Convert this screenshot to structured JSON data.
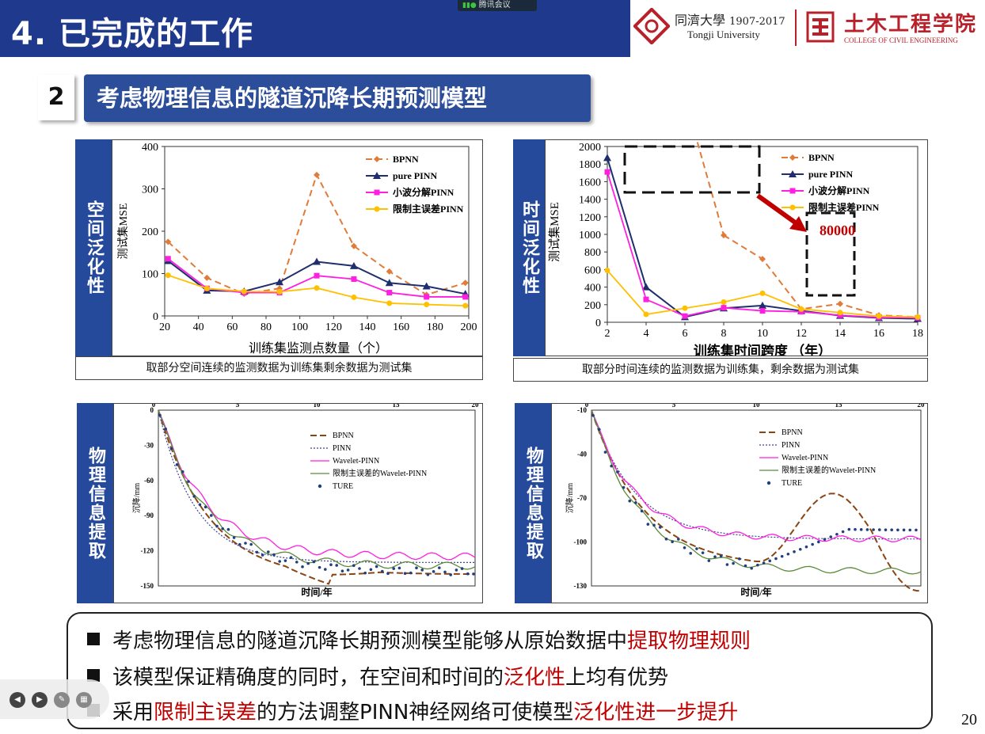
{
  "header": {
    "title": "4. 已完成的工作",
    "meeting": "腾讯会议",
    "tongji_cn": "同濟大學",
    "tongji_years": "1907-2017",
    "tongji_en": "Tongji University",
    "college_cn": "土木工程学院",
    "college_en": "COLLEGE OF CIVIL ENGINEERING"
  },
  "section": {
    "number": "2",
    "title": "考虑物理信息的隧道沉降长期预测模型"
  },
  "panels": {
    "spatial_label": "空间泛化性",
    "temporal_label": "时间泛化性",
    "phys_label_1": "物理信息提取",
    "phys_label_2": "物理信息提取",
    "spatial_caption": "取部分空间连续的监测数据为训练集剩余数据为测试集",
    "temporal_caption": "取部分时间连续的监测数据为训练集，剩余数据为测试集"
  },
  "colors": {
    "bpnn": "#e07b39",
    "pinn": "#1f2f6e",
    "wavelet": "#ff1fe0",
    "limit": "#ffc000",
    "true": "#1f3f7f",
    "limit2": "#5a8a3a"
  },
  "chart_data": [
    {
      "type": "line",
      "id": "spatial",
      "xlabel": "训练集监测点数量（个）",
      "ylabel": "测试集MSE",
      "xlim": [
        20,
        200
      ],
      "ylim": [
        0,
        400
      ],
      "xticks": [
        20,
        40,
        60,
        80,
        100,
        120,
        140,
        160,
        180,
        200
      ],
      "yticks": [
        0,
        100,
        200,
        300,
        400
      ],
      "x": [
        22,
        45,
        67,
        88,
        110,
        132,
        153,
        175,
        198
      ],
      "series": [
        {
          "name": "BPNN",
          "values": [
            175,
            90,
            52,
            65,
            333,
            165,
            105,
            50,
            78
          ]
        },
        {
          "name": "pure PINN",
          "values": [
            130,
            60,
            58,
            80,
            128,
            118,
            78,
            70,
            52
          ]
        },
        {
          "name": "小波分解PINN",
          "values": [
            135,
            65,
            55,
            55,
            95,
            87,
            55,
            45,
            45
          ]
        },
        {
          "name": "限制主误差PINN",
          "values": [
            96,
            65,
            58,
            57,
            66,
            44,
            30,
            27,
            24
          ]
        }
      ]
    },
    {
      "type": "line",
      "id": "temporal",
      "xlabel": "训练集时间跨度 （年）",
      "ylabel": "测试集MSE",
      "xlim": [
        2,
        18
      ],
      "ylim": [
        0,
        2000
      ],
      "xticks": [
        2,
        4,
        6,
        8,
        10,
        12,
        14,
        16,
        18
      ],
      "yticks": [
        0,
        200,
        400,
        600,
        800,
        1000,
        1200,
        1400,
        1600,
        1800,
        2000
      ],
      "annotation": "80000",
      "x": [
        2,
        4,
        6,
        8,
        10,
        12,
        14,
        16,
        18
      ],
      "series": [
        {
          "name": "BPNN",
          "values": [
            null,
            null,
            null,
            990,
            720,
            150,
            210,
            80,
            60
          ]
        },
        {
          "name": "pure PINN",
          "values": [
            1870,
            400,
            60,
            160,
            190,
            130,
            75,
            50,
            40
          ]
        },
        {
          "name": "小波分解PINN",
          "values": [
            1710,
            260,
            70,
            165,
            130,
            120,
            80,
            55,
            50
          ]
        },
        {
          "name": "限制主误差PINN",
          "values": [
            590,
            90,
            160,
            230,
            330,
            150,
            110,
            70,
            60
          ]
        }
      ]
    },
    {
      "type": "line",
      "id": "physics1",
      "xlabel": "时间/年",
      "ylabel": "沉降/mm",
      "xlim": [
        0,
        20
      ],
      "ylim": [
        -150,
        0
      ],
      "xticks": [
        5,
        10,
        15,
        20
      ],
      "xtick_zero": "0",
      "yticks": [
        0,
        -30,
        -60,
        -90,
        -120,
        -150
      ],
      "legend": [
        "BPNN",
        "PINN",
        "Wavelet-PINN",
        "限制主误差的Wavelet-PINN",
        "TURE"
      ]
    },
    {
      "type": "line",
      "id": "physics2",
      "xlabel": "时间/年",
      "ylabel": "沉降/mm",
      "xlim": [
        0,
        20
      ],
      "ylim": [
        -130,
        -10
      ],
      "xticks": [
        5,
        10,
        15,
        20
      ],
      "xtick_zero": "0",
      "yticks": [
        -10,
        -40,
        -70,
        -100,
        -130
      ],
      "legend": [
        "BPNN",
        "PINN",
        "Wavelet-PINN",
        "限制主误差的Wavelet-PINN",
        "TURE"
      ]
    }
  ],
  "bullets": [
    {
      "pre": "考虑物理信息的隧道沉降长期预测模型能够从原始数据中",
      "hl": "提取物理规则",
      "post": ""
    },
    {
      "pre": "该模型保证精确度的同时，在空间和时间的",
      "hl": "泛化性",
      "post": "上均有优势"
    },
    {
      "pre": "采用",
      "hl": "限制主误差",
      "mid": "的方法调整PINN神经网络可使模型",
      "hl2": "泛化性进一步提升"
    }
  ],
  "page_number": "20"
}
